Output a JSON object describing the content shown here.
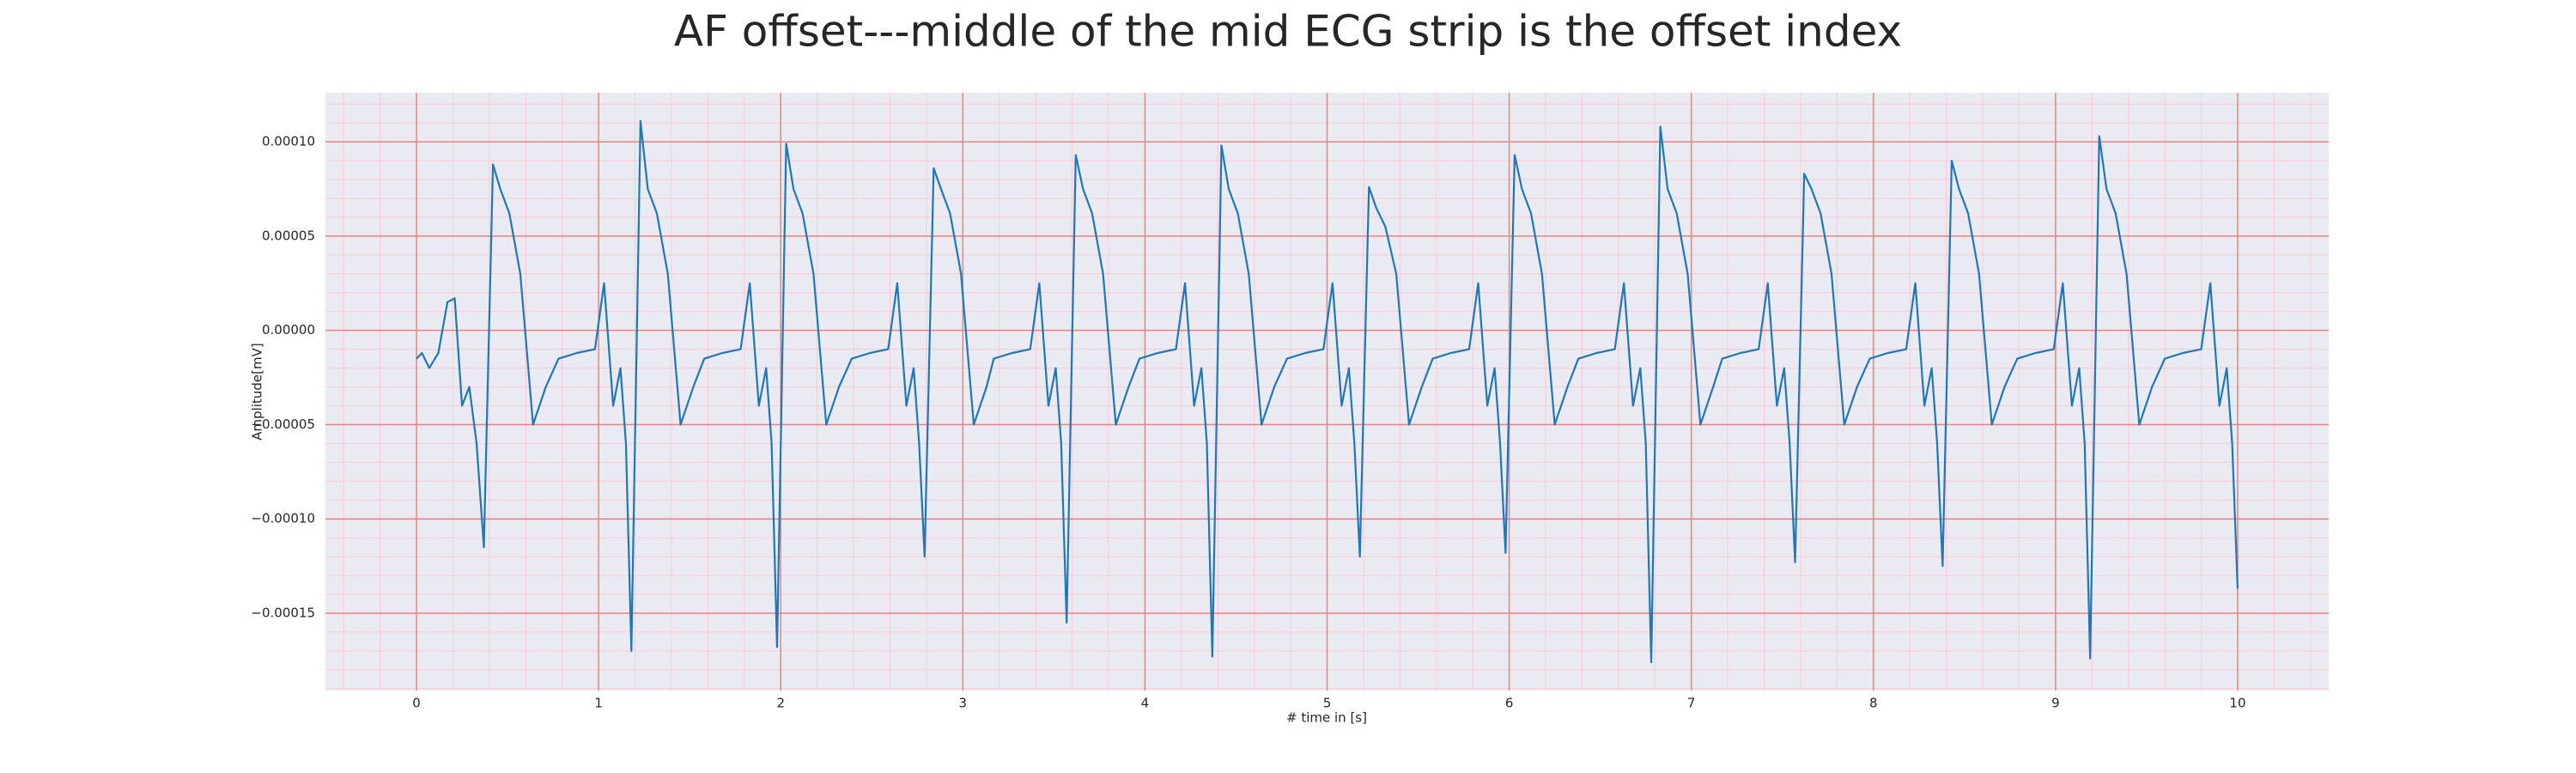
{
  "chart_data": {
    "type": "line",
    "title": "AF offset---middle of the mid ECG strip is the offset index",
    "xlabel": "# time in [s]",
    "ylabel": "Amplitude[mV]",
    "xlim": [
      -0.5,
      10.5
    ],
    "ylim": [
      -0.000191,
      0.000126
    ],
    "xticks": [
      0,
      1,
      2,
      3,
      4,
      5,
      6,
      7,
      8,
      9,
      10
    ],
    "yticks": [
      {
        "value": -0.00015,
        "label": "−0.00015"
      },
      {
        "value": -0.0001,
        "label": "−0.00010"
      },
      {
        "value": -5e-05,
        "label": "−0.00005"
      },
      {
        "value": 0,
        "label": "0.00000"
      },
      {
        "value": 5e-05,
        "label": "0.00005"
      },
      {
        "value": 0.0001,
        "label": "0.00010"
      }
    ],
    "grid": true,
    "grid_color": "#f08080",
    "minor_grid": {
      "xstep": 0.2,
      "ystep": 1e-05,
      "color": "#ffc8d2"
    },
    "background": "#eaeaf2",
    "series": [
      {
        "color": "#1f77b4",
        "x": [
          0,
          0.03,
          0.07,
          0.12,
          0.17,
          0.21,
          0.25,
          0.29,
          0.33,
          0.37,
          0.42,
          0.46,
          0.51,
          0.57,
          0.64,
          0.71,
          0.78,
          0.88,
          0.98,
          1.03,
          1.08,
          1.12,
          1.15,
          1.18,
          1.23,
          1.27,
          1.32,
          1.38,
          1.45,
          1.52,
          1.58,
          1.68,
          1.78,
          1.83,
          1.88,
          1.92,
          1.95,
          1.98,
          2.03,
          2.07,
          2.12,
          2.18,
          2.25,
          2.32,
          2.39,
          2.49,
          2.59,
          2.64,
          2.69,
          2.73,
          2.76,
          2.79,
          2.84,
          2.88,
          2.93,
          2.99,
          3.06,
          3.13,
          3.17,
          3.27,
          3.37,
          3.42,
          3.47,
          3.51,
          3.54,
          3.57,
          3.62,
          3.66,
          3.71,
          3.77,
          3.84,
          3.91,
          3.97,
          4.07,
          4.17,
          4.22,
          4.27,
          4.31,
          4.34,
          4.37,
          4.42,
          4.46,
          4.51,
          4.57,
          4.64,
          4.71,
          4.78,
          4.88,
          4.98,
          5.03,
          5.08,
          5.12,
          5.15,
          5.18,
          5.23,
          5.27,
          5.32,
          5.38,
          5.45,
          5.52,
          5.58,
          5.68,
          5.78,
          5.83,
          5.88,
          5.92,
          5.95,
          5.98,
          6.03,
          6.07,
          6.12,
          6.18,
          6.25,
          6.32,
          6.38,
          6.48,
          6.58,
          6.63,
          6.68,
          6.72,
          6.75,
          6.78,
          6.83,
          6.87,
          6.92,
          6.98,
          7.05,
          7.12,
          7.17,
          7.27,
          7.37,
          7.42,
          7.47,
          7.51,
          7.54,
          7.57,
          7.62,
          7.66,
          7.71,
          7.77,
          7.84,
          7.91,
          7.98,
          8.08,
          8.18,
          8.23,
          8.28,
          8.32,
          8.35,
          8.38,
          8.43,
          8.47,
          8.52,
          8.58,
          8.65,
          8.72,
          8.79,
          8.89,
          8.99,
          9.04,
          9.09,
          9.13,
          9.16,
          9.19,
          9.24,
          9.28,
          9.33,
          9.39,
          9.46,
          9.53,
          9.6,
          9.7,
          9.8,
          9.85,
          9.9,
          9.94,
          9.97,
          10.0
        ],
        "values": [
          -1.5e-05,
          -1.2e-05,
          -2e-05,
          -1.2e-05,
          1.5e-05,
          1.7e-05,
          -4e-05,
          -3e-05,
          -6e-05,
          -0.000115,
          8.8e-05,
          7.5e-05,
          6.2e-05,
          3e-05,
          -5e-05,
          -3e-05,
          -1.5e-05,
          -1.2e-05,
          -1e-05,
          2.5e-05,
          -4e-05,
          -2e-05,
          -6e-05,
          -0.00017,
          0.000111,
          7.5e-05,
          6.2e-05,
          3e-05,
          -5e-05,
          -3e-05,
          -1.5e-05,
          -1.2e-05,
          -1e-05,
          2.5e-05,
          -4e-05,
          -2e-05,
          -6e-05,
          -0.000168,
          9.9e-05,
          7.5e-05,
          6.2e-05,
          3e-05,
          -5e-05,
          -3e-05,
          -1.5e-05,
          -1.2e-05,
          -1e-05,
          2.5e-05,
          -4e-05,
          -2e-05,
          -6e-05,
          -0.00012,
          8.6e-05,
          7.5e-05,
          6.2e-05,
          3e-05,
          -5e-05,
          -3e-05,
          -1.5e-05,
          -1.2e-05,
          -1e-05,
          2.5e-05,
          -4e-05,
          -2e-05,
          -6e-05,
          -0.000155,
          9.3e-05,
          7.5e-05,
          6.2e-05,
          3e-05,
          -5e-05,
          -3e-05,
          -1.5e-05,
          -1.2e-05,
          -1e-05,
          2.5e-05,
          -4e-05,
          -2e-05,
          -6e-05,
          -0.000173,
          9.8e-05,
          7.5e-05,
          6.2e-05,
          3e-05,
          -5e-05,
          -3e-05,
          -1.5e-05,
          -1.2e-05,
          -1e-05,
          2.5e-05,
          -4e-05,
          -2e-05,
          -6e-05,
          -0.00012,
          7.6e-05,
          6.5e-05,
          5.5e-05,
          3e-05,
          -5e-05,
          -3e-05,
          -1.5e-05,
          -1.2e-05,
          -1e-05,
          2.5e-05,
          -4e-05,
          -2e-05,
          -6e-05,
          -0.000118,
          9.3e-05,
          7.5e-05,
          6.2e-05,
          3e-05,
          -5e-05,
          -3e-05,
          -1.5e-05,
          -1.2e-05,
          -1e-05,
          2.5e-05,
          -4e-05,
          -2e-05,
          -6e-05,
          -0.000176,
          0.000108,
          7.5e-05,
          6.2e-05,
          3e-05,
          -5e-05,
          -3e-05,
          -1.5e-05,
          -1.2e-05,
          -1e-05,
          2.5e-05,
          -4e-05,
          -2e-05,
          -6e-05,
          -0.000123,
          8.3e-05,
          7.5e-05,
          6.2e-05,
          3e-05,
          -5e-05,
          -3e-05,
          -1.5e-05,
          -1.2e-05,
          -1e-05,
          2.5e-05,
          -4e-05,
          -2e-05,
          -6e-05,
          -0.000125,
          9e-05,
          7.5e-05,
          6.2e-05,
          3e-05,
          -5e-05,
          -3e-05,
          -1.5e-05,
          -1.2e-05,
          -1e-05,
          2.5e-05,
          -4e-05,
          -2e-05,
          -6e-05,
          -0.000174,
          0.000103,
          7.5e-05,
          6.2e-05,
          3e-05,
          -5e-05,
          -3e-05,
          -1.5e-05,
          -1.2e-05,
          -1e-05,
          2.5e-05,
          -4e-05,
          -2e-05,
          -6e-05,
          -0.000137
        ]
      }
    ]
  }
}
